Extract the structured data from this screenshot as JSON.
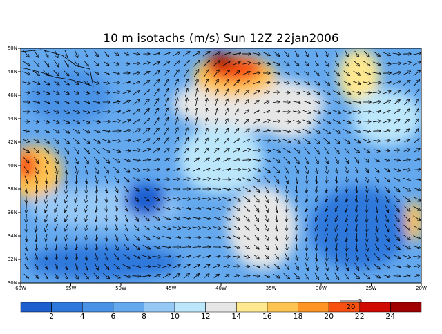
{
  "chart_data": {
    "type": "map",
    "title": "10 m isotachs (m/s) Sun 12Z 22jan2006",
    "xlim": [
      -60,
      -20
    ],
    "ylim": [
      30,
      50
    ],
    "xticks": [
      {
        "value": -60,
        "label": "60W"
      },
      {
        "value": -55,
        "label": "55W"
      },
      {
        "value": -50,
        "label": "50W"
      },
      {
        "value": -45,
        "label": "45W"
      },
      {
        "value": -40,
        "label": "40W"
      },
      {
        "value": -35,
        "label": "35W"
      },
      {
        "value": -30,
        "label": "30W"
      },
      {
        "value": -25,
        "label": "25W"
      },
      {
        "value": -20,
        "label": "20W"
      }
    ],
    "yticks": [
      {
        "value": 30,
        "label": "30N"
      },
      {
        "value": 32,
        "label": "32N"
      },
      {
        "value": 34,
        "label": "34N"
      },
      {
        "value": 36,
        "label": "36N"
      },
      {
        "value": 38,
        "label": "38N"
      },
      {
        "value": 40,
        "label": "40N"
      },
      {
        "value": 42,
        "label": "42N"
      },
      {
        "value": 44,
        "label": "44N"
      },
      {
        "value": 46,
        "label": "46N"
      },
      {
        "value": 48,
        "label": "48N"
      },
      {
        "value": 50,
        "label": "50N"
      }
    ],
    "colorbar": {
      "clim": [
        0,
        26
      ],
      "colors": [
        "#1e5fd0",
        "#2e78dc",
        "#4a92e6",
        "#64a8ee",
        "#96c8f6",
        "#bce6fa",
        "#e6e6e6",
        "#fee890",
        "#fec452",
        "#fd9424",
        "#f85010",
        "#d00a00",
        "#a00000"
      ],
      "ticks": [
        2,
        4,
        6,
        8,
        10,
        12,
        14,
        16,
        18,
        20,
        22,
        24
      ]
    },
    "reference_vector": 20
  }
}
